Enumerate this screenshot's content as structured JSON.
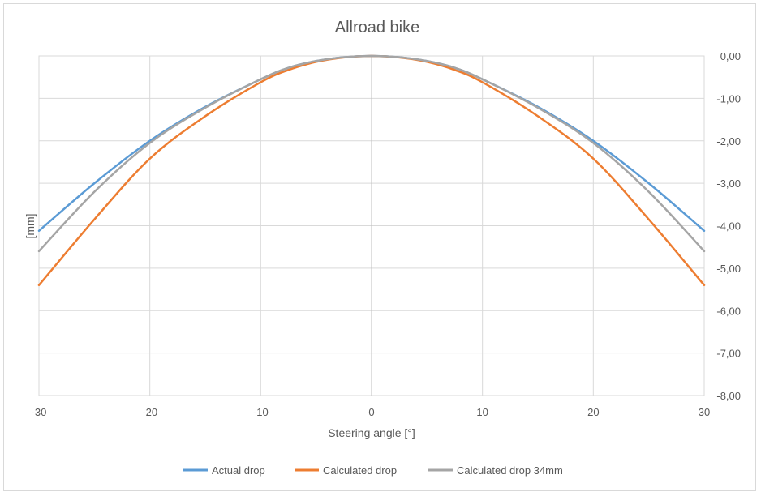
{
  "chart_data": {
    "type": "line",
    "title": "Allroad bike",
    "xlabel": "Steering angle [°]",
    "ylabel": "[mm]",
    "xlim": [
      -30,
      30
    ],
    "ylim": [
      -8,
      0
    ],
    "x_ticks": [
      -30,
      -20,
      -10,
      0,
      10,
      20,
      30
    ],
    "y_ticks": [
      "0,00",
      "-1,00",
      "-2,00",
      "-3,00",
      "-4,00",
      "-5,00",
      "-6,00",
      "-7,00",
      "-8,00"
    ],
    "y_axis_position": "right",
    "grid": true,
    "legend": "bottom",
    "x": [
      -30,
      -25,
      -20,
      -15,
      -10,
      -7.5,
      -5,
      -2.5,
      0,
      2.5,
      5,
      7.5,
      10,
      15,
      20,
      25,
      30
    ],
    "series": [
      {
        "name": "Actual drop",
        "color": "#5b9bd5",
        "values": [
          -4.12,
          -3.0,
          -2.0,
          -1.2,
          -0.55,
          -0.28,
          -0.12,
          -0.03,
          0,
          -0.03,
          -0.12,
          -0.28,
          -0.55,
          -1.2,
          -2.0,
          -3.0,
          -4.12
        ]
      },
      {
        "name": "Calculated drop",
        "color": "#ed7d31",
        "values": [
          -5.4,
          -3.85,
          -2.42,
          -1.42,
          -0.62,
          -0.33,
          -0.14,
          -0.035,
          0,
          -0.035,
          -0.14,
          -0.33,
          -0.62,
          -1.42,
          -2.42,
          -3.85,
          -5.4
        ]
      },
      {
        "name": "Calculated drop 34mm",
        "color": "#a5a5a5",
        "values": [
          -4.6,
          -3.2,
          -2.05,
          -1.22,
          -0.55,
          -0.28,
          -0.12,
          -0.03,
          0,
          -0.03,
          -0.12,
          -0.28,
          -0.55,
          -1.22,
          -2.05,
          -3.2,
          -4.6
        ]
      }
    ]
  }
}
